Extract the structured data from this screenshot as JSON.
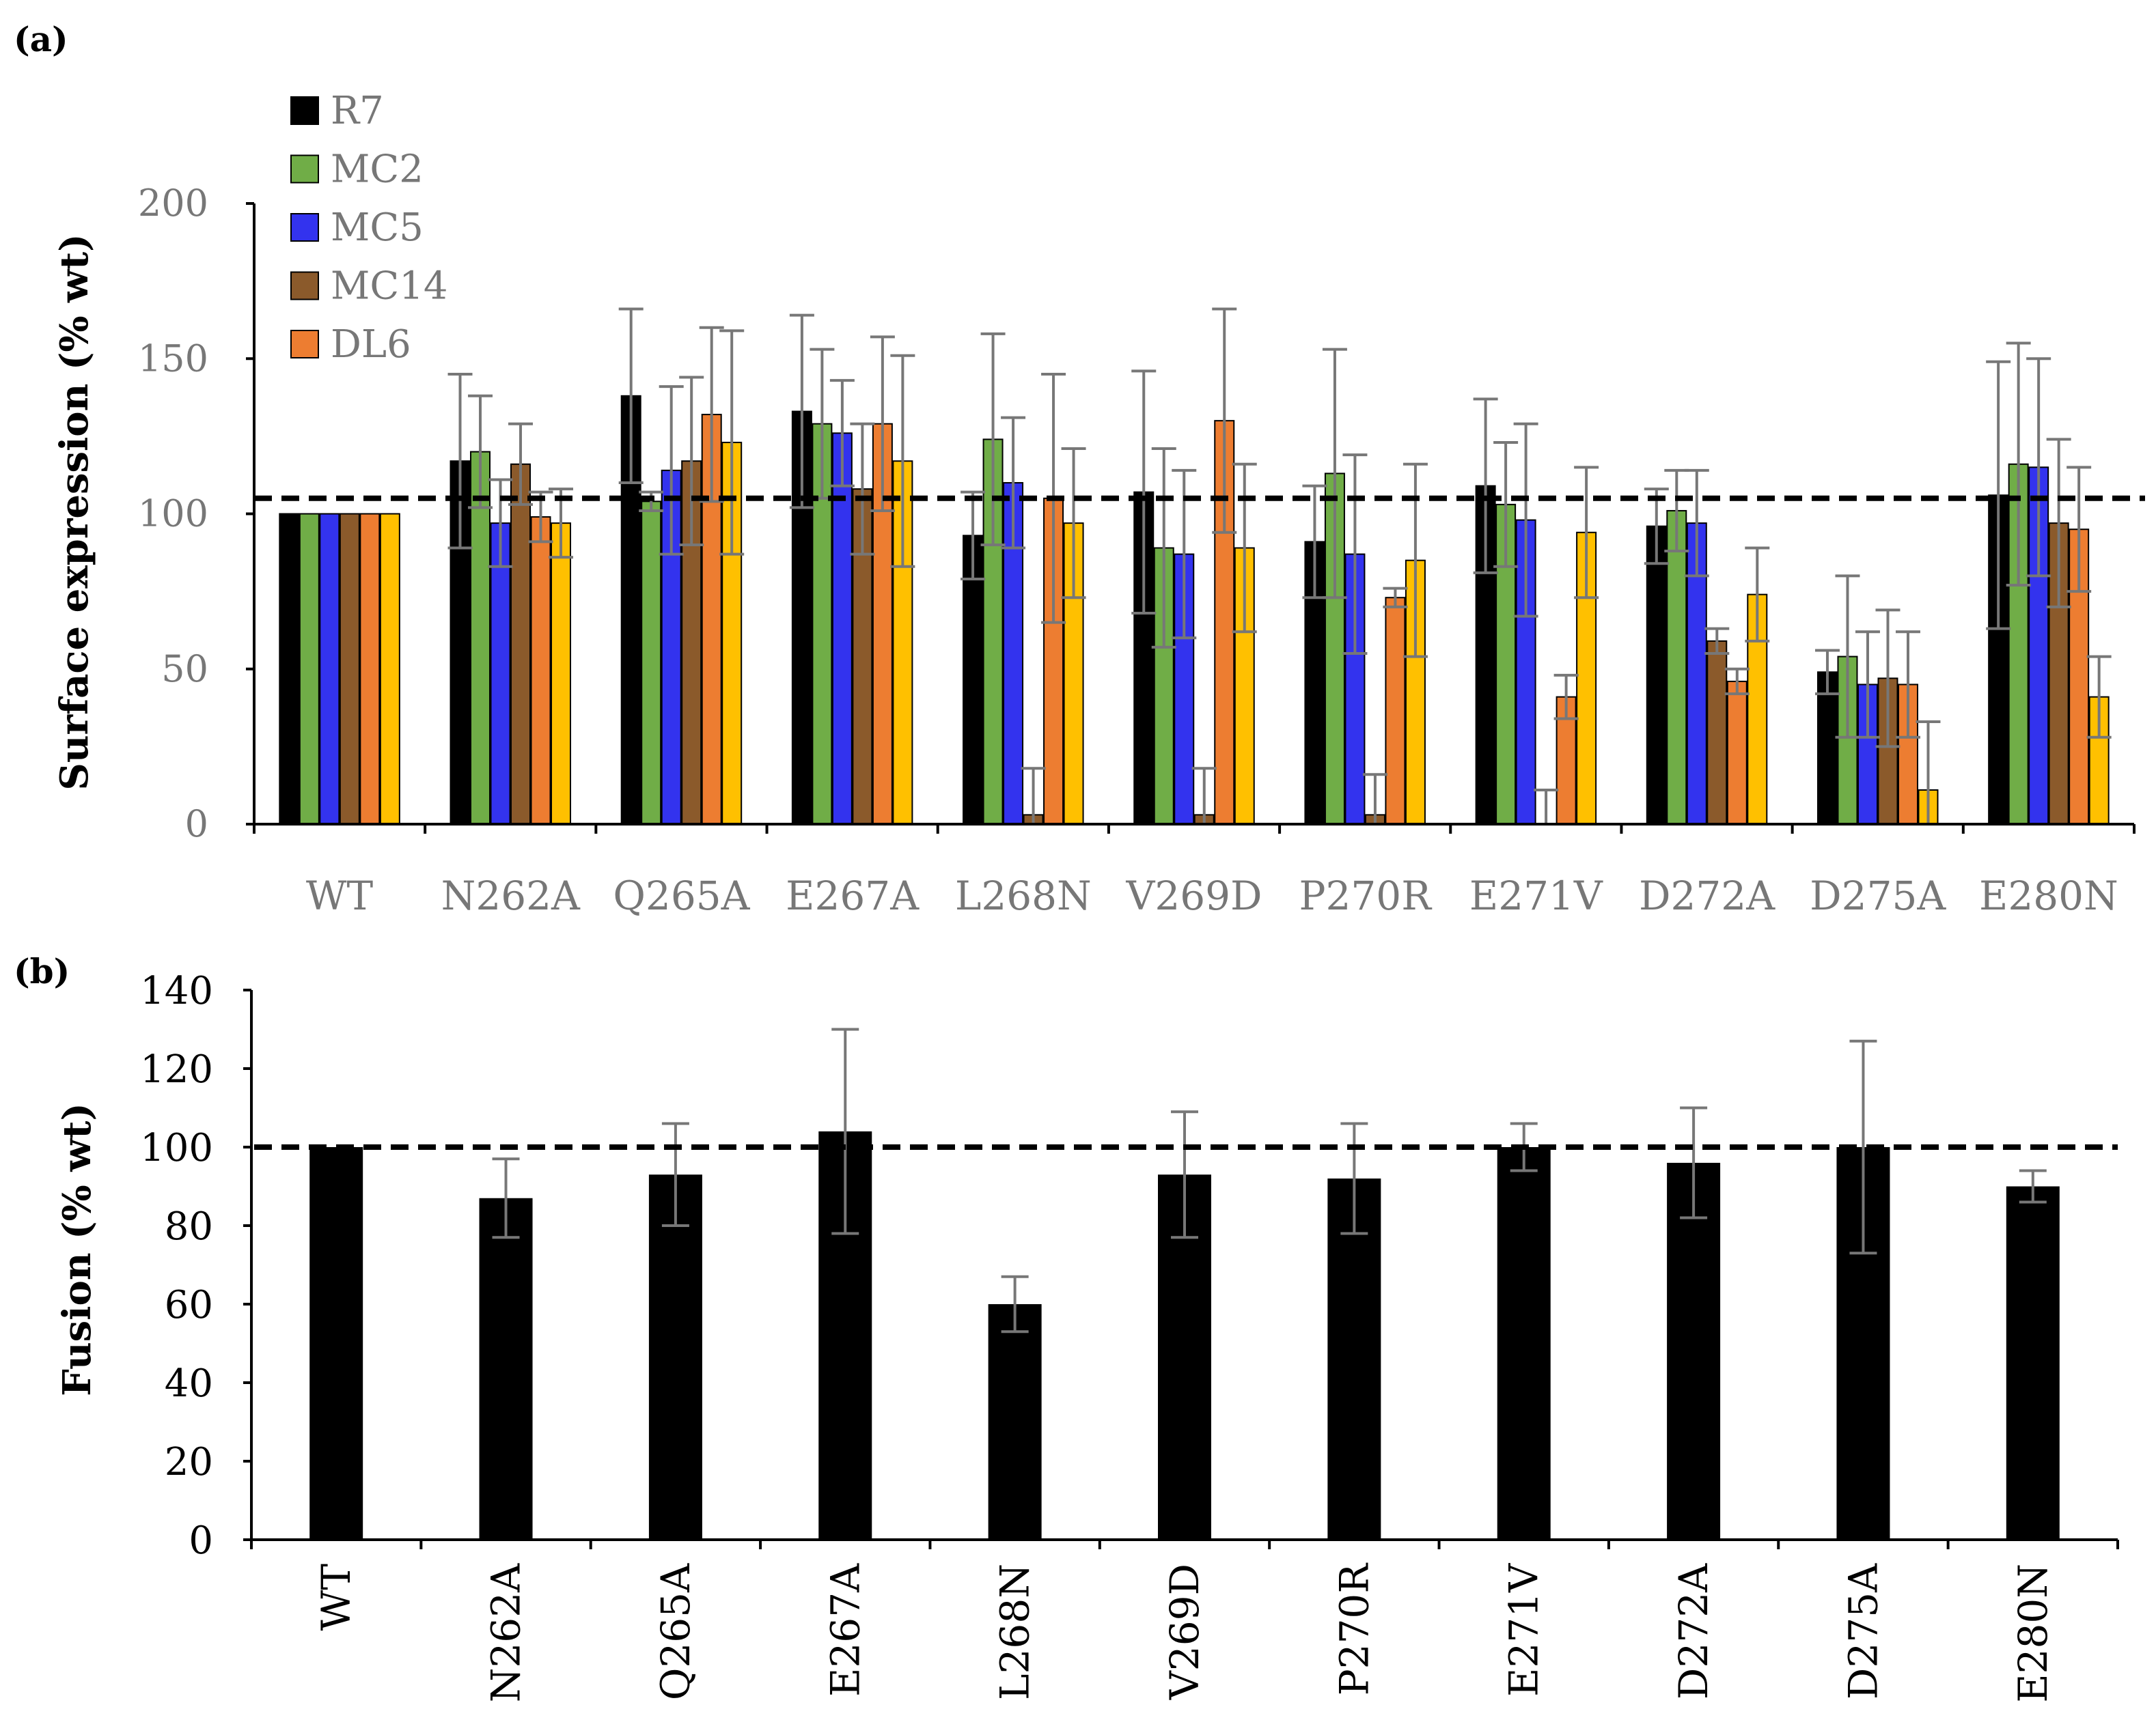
{
  "chart_data": [
    {
      "panel_label": "(a)",
      "type": "bar",
      "title": "",
      "xlabel": "",
      "ylabel": "Surface expression (% wt)",
      "ylim": [
        0,
        200
      ],
      "yticks": [
        0,
        50,
        100,
        150,
        200
      ],
      "grid": false,
      "legend_position": "top-left",
      "reference_line": 105,
      "categories": [
        "WT",
        "N262A",
        "Q265A",
        "E267A",
        "L268N",
        "V269D",
        "P270R",
        "E271V",
        "D272A",
        "D275A",
        "E280N"
      ],
      "series": [
        {
          "name": "R7",
          "color": "#000000",
          "values": [
            100,
            117,
            138,
            133,
            93,
            107,
            91,
            109,
            96,
            49,
            106
          ],
          "errors": [
            0,
            28,
            28,
            31,
            14,
            39,
            18,
            28,
            12,
            7,
            43
          ]
        },
        {
          "name": "MC2",
          "color": "#70AD47",
          "values": [
            100,
            120,
            104,
            129,
            124,
            89,
            113,
            103,
            101,
            54,
            116
          ],
          "errors": [
            0,
            18,
            3,
            24,
            34,
            32,
            40,
            20,
            13,
            26,
            39
          ]
        },
        {
          "name": "MC5",
          "color": "#3333EE",
          "values": [
            100,
            97,
            114,
            126,
            110,
            87,
            87,
            98,
            97,
            45,
            115
          ],
          "errors": [
            0,
            14,
            27,
            17,
            21,
            27,
            32,
            31,
            17,
            17,
            35
          ]
        },
        {
          "name": "MC14",
          "color": "#8B5A2B",
          "values": [
            100,
            116,
            117,
            108,
            3,
            3,
            3,
            0,
            59,
            47,
            97
          ],
          "errors": [
            0,
            13,
            27,
            21,
            15,
            15,
            13,
            11,
            4,
            22,
            27
          ]
        },
        {
          "name": "DL6",
          "color": "#ED7D31",
          "values": [
            100,
            99,
            132,
            129,
            105,
            130,
            73,
            41,
            46,
            45,
            95
          ],
          "errors": [
            0,
            8,
            28,
            28,
            40,
            36,
            3,
            7,
            4,
            17,
            20
          ]
        },
        {
          "name": "",
          "color": "#FFC000",
          "values": [
            100,
            97,
            123,
            117,
            97,
            89,
            85,
            94,
            74,
            11,
            41
          ],
          "errors": [
            0,
            11,
            36,
            34,
            24,
            27,
            31,
            21,
            15,
            22,
            13
          ]
        }
      ]
    },
    {
      "panel_label": "(b)",
      "type": "bar",
      "title": "",
      "xlabel": "",
      "ylabel": "Fusion (% wt)",
      "ylim": [
        0,
        140
      ],
      "yticks": [
        0,
        20,
        40,
        60,
        80,
        100,
        120,
        140
      ],
      "grid": false,
      "reference_line": 100,
      "categories": [
        "WT",
        "N262A",
        "Q265A",
        "E267A",
        "L268N",
        "V269D",
        "P270R",
        "E271V",
        "D272A",
        "D275A",
        "E280N"
      ],
      "series": [
        {
          "name": "Fusion",
          "color": "#000000",
          "values": [
            100,
            87,
            93,
            104,
            60,
            93,
            92,
            100,
            96,
            100,
            90
          ],
          "errors": [
            0,
            10,
            13,
            26,
            7,
            16,
            14,
            6,
            14,
            27,
            4
          ]
        }
      ]
    }
  ]
}
